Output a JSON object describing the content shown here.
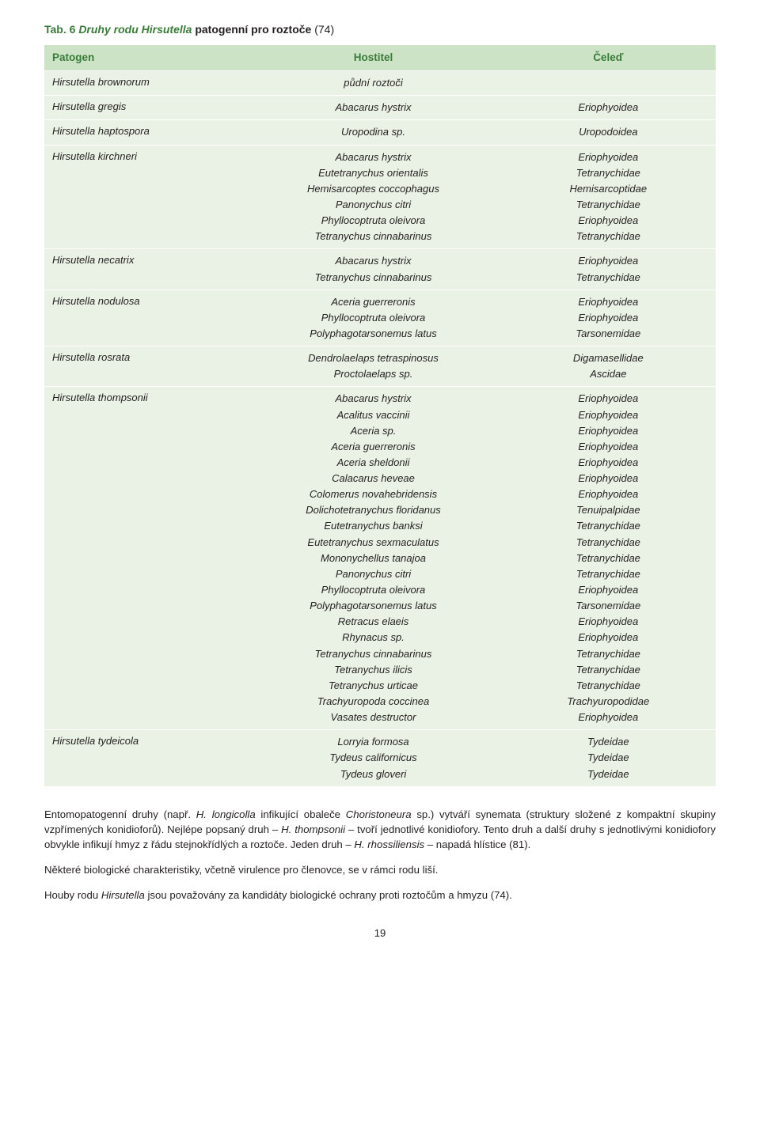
{
  "caption": {
    "label": "Tab. 6",
    "title_colored": "Druhy rodu Hirsutella",
    "title_black": " patogenní pro roztoče",
    "ref": " (74)"
  },
  "headers": {
    "c1": "Patogen",
    "c2": "Hostitel",
    "c3": "Čeleď"
  },
  "rows": [
    {
      "pathogen": "Hirsutella brownorum",
      "hosts": [
        "půdní roztoči"
      ],
      "families": [
        ""
      ]
    },
    {
      "pathogen": "Hirsutella gregis",
      "hosts": [
        "Abacarus hystrix"
      ],
      "families": [
        "Eriophyoidea"
      ]
    },
    {
      "pathogen": "Hirsutella haptospora",
      "hosts": [
        "Uropodina sp."
      ],
      "families": [
        "Uropodoidea"
      ]
    },
    {
      "pathogen": "Hirsutella kirchneri",
      "hosts": [
        "Abacarus hystrix",
        "Eutetranychus orientalis",
        "Hemisarcoptes coccophagus",
        "Panonychus citri",
        "Phyllocoptruta oleivora",
        "Tetranychus cinnabarinus"
      ],
      "families": [
        "Eriophyoidea",
        "Tetranychidae",
        "Hemisarcoptidae",
        "Tetranychidae",
        "Eriophyoidea",
        "Tetranychidae"
      ]
    },
    {
      "pathogen": "Hirsutella necatrix",
      "hosts": [
        "Abacarus hystrix",
        "Tetranychus cinnabarinus"
      ],
      "families": [
        "Eriophyoidea",
        "Tetranychidae"
      ]
    },
    {
      "pathogen": "Hirsutella nodulosa",
      "hosts": [
        "Aceria guerreronis",
        "Phyllocoptruta oleivora",
        "Polyphagotarsonemus latus"
      ],
      "families": [
        "Eriophyoidea",
        "Eriophyoidea",
        "Tarsonemidae"
      ]
    },
    {
      "pathogen": "Hirsutella rosrata",
      "hosts": [
        "Dendrolaelaps tetraspinosus",
        "Proctolaelaps sp."
      ],
      "families": [
        "Digamasellidae",
        "Ascidae"
      ]
    },
    {
      "pathogen": "Hirsutella thompsonii",
      "hosts": [
        "Abacarus hystrix",
        "Acalitus vaccinii",
        "Aceria sp.",
        "Aceria guerreronis",
        "Aceria sheldonii",
        "Calacarus heveae",
        "Colomerus novahebridensis",
        "Dolichotetranychus floridanus",
        "Eutetranychus banksi",
        "Eutetranychus sexmaculatus",
        "Mononychellus tanajoa",
        "Panonychus citri",
        "Phyllocoptruta oleivora",
        "Polyphagotarsonemus latus",
        "Retracus elaeis",
        "Rhynacus sp.",
        "Tetranychus cinnabarinus",
        "Tetranychus ilicis",
        "Tetranychus urticae",
        "Trachyuropoda coccinea",
        "Vasates destructor"
      ],
      "families": [
        "Eriophyoidea",
        "Eriophyoidea",
        "Eriophyoidea",
        "Eriophyoidea",
        "Eriophyoidea",
        "Eriophyoidea",
        "Eriophyoidea",
        "Tenuipalpidae",
        "Tetranychidae",
        "Tetranychidae",
        "Tetranychidae",
        "Tetranychidae",
        "Eriophyoidea",
        "Tarsonemidae",
        "Eriophyoidea",
        "Eriophyoidea",
        "Tetranychidae",
        "Tetranychidae",
        "Tetranychidae",
        "Trachyuropodidae",
        "Eriophyoidea"
      ]
    },
    {
      "pathogen": "Hirsutella tydeicola",
      "hosts": [
        "Lorryia formosa",
        "Tydeus californicus",
        "Tydeus gloveri"
      ],
      "families": [
        "Tydeidae",
        "Tydeidae",
        "Tydeidae"
      ]
    }
  ],
  "paragraphs": {
    "p1_a": "Entomopatogenní druhy (např. ",
    "p1_i1": "H. longicolla",
    "p1_b": " infikující obaleče ",
    "p1_i2": "Choristoneura",
    "p1_c": " sp.) vytváří synemata (struktury složené z kompaktní skupiny vzpřímených konidioforů). Nejlépe popsaný druh – ",
    "p1_i3": "H. thompsonii",
    "p1_d": " – tvoří jednotlivé konidiofory. Tento druh a další druhy s jednotlivými konidiofory obvykle infikují hmyz z řádu stejnokřídlých a roztoče. Jeden druh – ",
    "p1_i4": "H. rhossiliensis",
    "p1_e": " – napadá hlístice (81).",
    "p2": "Některé biologické charakteristiky, včetně virulence pro členovce, se v rámci rodu liší.",
    "p3_a": "Houby rodu ",
    "p3_i1": "Hirsutella",
    "p3_b": " jsou považovány za kandidáty biologické ochrany proti roztočům a hmyzu (74)."
  },
  "page_number": "19",
  "colors": {
    "header_bg": "#cde3c6",
    "row_bg": "#eaf2e5",
    "accent": "#3a7b3a",
    "text": "#231f20"
  }
}
